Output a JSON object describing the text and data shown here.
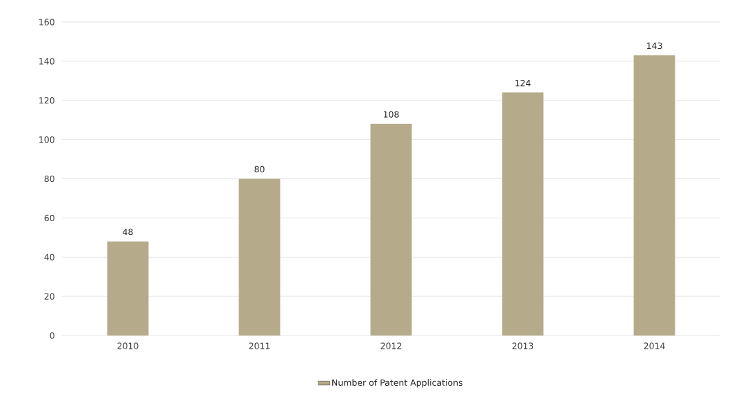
{
  "chart_data": {
    "type": "bar",
    "categories": [
      "2010",
      "2011",
      "2012",
      "2013",
      "2014"
    ],
    "series": [
      {
        "name": "Number of Patent Applications",
        "color": "#b5ab8a",
        "values": [
          48,
          80,
          108,
          124,
          143
        ]
      }
    ],
    "ylim": [
      0,
      160
    ],
    "yticks": [
      0,
      20,
      40,
      60,
      80,
      100,
      120,
      140,
      160
    ],
    "grid": "y",
    "legend": "bottom",
    "data_labels": true
  }
}
